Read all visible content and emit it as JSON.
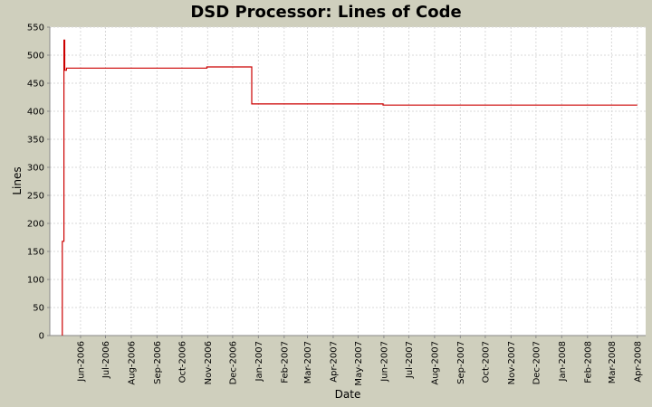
{
  "chart_data": {
    "type": "line",
    "title": "DSD Processor: Lines of Code",
    "xlabel": "Date",
    "ylabel": "Lines",
    "ylim": [
      0,
      550
    ],
    "xlim": [
      "2006-04-25",
      "2008-04-11"
    ],
    "grid": true,
    "legend": "none",
    "colors": {
      "background": "#cfcfbd",
      "plot_bg": "#ffffff",
      "grid": "#d9d9d9",
      "series": "#cc0000"
    },
    "y_ticks": [
      0,
      50,
      100,
      150,
      200,
      250,
      300,
      350,
      400,
      450,
      500,
      550
    ],
    "x_ticks": [
      {
        "label": "Jun-2006",
        "date": "2006-06-01"
      },
      {
        "label": "Jul-2006",
        "date": "2006-07-01"
      },
      {
        "label": "Aug-2006",
        "date": "2006-08-01"
      },
      {
        "label": "Sep-2006",
        "date": "2006-09-01"
      },
      {
        "label": "Oct-2006",
        "date": "2006-10-01"
      },
      {
        "label": "Nov-2006",
        "date": "2006-11-01"
      },
      {
        "label": "Dec-2006",
        "date": "2006-12-01"
      },
      {
        "label": "Jan-2007",
        "date": "2007-01-01"
      },
      {
        "label": "Feb-2007",
        "date": "2007-02-01"
      },
      {
        "label": "Mar-2007",
        "date": "2007-03-01"
      },
      {
        "label": "Apr-2007",
        "date": "2007-04-01"
      },
      {
        "label": "May-2007",
        "date": "2007-05-01"
      },
      {
        "label": "Jun-2007",
        "date": "2007-06-01"
      },
      {
        "label": "Jul-2007",
        "date": "2007-07-01"
      },
      {
        "label": "Aug-2007",
        "date": "2007-08-01"
      },
      {
        "label": "Sep-2007",
        "date": "2007-09-01"
      },
      {
        "label": "Oct-2007",
        "date": "2007-10-01"
      },
      {
        "label": "Nov-2007",
        "date": "2007-11-01"
      },
      {
        "label": "Dec-2007",
        "date": "2007-12-01"
      },
      {
        "label": "Jan-2008",
        "date": "2008-01-01"
      },
      {
        "label": "Feb-2008",
        "date": "2008-02-01"
      },
      {
        "label": "Mar-2008",
        "date": "2008-03-01"
      },
      {
        "label": "Apr-2008",
        "date": "2008-04-01"
      }
    ],
    "series": [
      {
        "step": true,
        "points": [
          {
            "date": "2006-05-10",
            "y": 0
          },
          {
            "date": "2006-05-10",
            "y": 168
          },
          {
            "date": "2006-05-12",
            "y": 168
          },
          {
            "date": "2006-05-12",
            "y": 527
          },
          {
            "date": "2006-05-13",
            "y": 527
          },
          {
            "date": "2006-05-13",
            "y": 473
          },
          {
            "date": "2006-05-15",
            "y": 473
          },
          {
            "date": "2006-05-15",
            "y": 477
          },
          {
            "date": "2006-10-31",
            "y": 477
          },
          {
            "date": "2006-10-31",
            "y": 479
          },
          {
            "date": "2006-12-24",
            "y": 479
          },
          {
            "date": "2006-12-24",
            "y": 413
          },
          {
            "date": "2007-05-31",
            "y": 413
          },
          {
            "date": "2007-05-31",
            "y": 411
          },
          {
            "date": "2008-04-01",
            "y": 411
          }
        ]
      }
    ]
  }
}
